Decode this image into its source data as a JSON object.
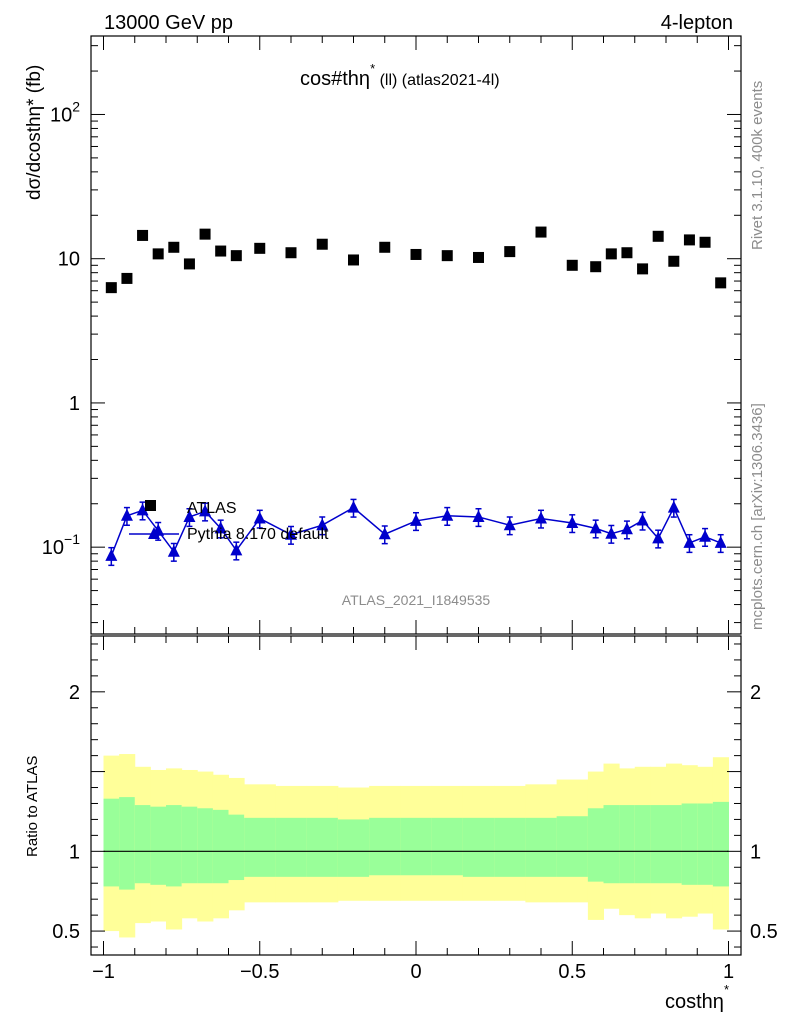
{
  "header": {
    "left": "13000 GeV pp",
    "right": "4-lepton"
  },
  "side_labels": {
    "rivet": "Rivet 3.1.10,  400k events",
    "mcplots": "mcplots.cern.ch [arXiv:1306.3436]"
  },
  "colors": {
    "data": "#000000",
    "mc": "#0000cc",
    "band_inner": "#99ff99",
    "band_outer": "#ffff99"
  },
  "chart_data": [
    {
      "type": "scatter",
      "title": "cos#thη* (ll) (atlas2021-4l)",
      "title_main": "cos#thη",
      "title_sup": "*",
      "title_rest": " (ll) (atlas2021-4l)",
      "ylabel": "dσ/dcosthη* (fb)",
      "yscale": "log",
      "ylim": [
        0.025,
        350
      ],
      "xlim": [
        -1.04,
        1.04
      ],
      "ytick_values": [
        0.1,
        1,
        10,
        100
      ],
      "ytick_labels": [
        {
          "base": "10",
          "exp": "−1"
        },
        {
          "base": "1",
          "exp": ""
        },
        {
          "base": "10",
          "exp": ""
        },
        {
          "base": "10",
          "exp": "2"
        }
      ],
      "watermark": "ATLAS_2021_I1849535",
      "legend": [
        {
          "label": "ATLAS",
          "marker": "square"
        },
        {
          "label": "Pythia 8.170 default",
          "marker": "triangle"
        }
      ],
      "series": [
        {
          "name": "ATLAS",
          "x": [
            -0.975,
            -0.925,
            -0.875,
            -0.825,
            -0.775,
            -0.725,
            -0.675,
            -0.625,
            -0.575,
            -0.5,
            -0.4,
            -0.3,
            -0.2,
            -0.1,
            0.0,
            0.1,
            0.2,
            0.3,
            0.4,
            0.5,
            0.575,
            0.625,
            0.675,
            0.725,
            0.775,
            0.825,
            0.875,
            0.925,
            0.975
          ],
          "y": [
            6.3,
            7.3,
            14.5,
            10.8,
            12.0,
            9.2,
            14.8,
            11.3,
            10.5,
            11.8,
            11.0,
            12.6,
            9.8,
            12.0,
            10.7,
            10.5,
            10.2,
            11.2,
            15.3,
            9.0,
            8.8,
            10.8,
            11.0,
            8.5,
            14.3,
            9.6,
            13.5,
            13.0,
            6.8
          ]
        },
        {
          "name": "Pythia 8.170 default",
          "x": [
            -0.975,
            -0.925,
            -0.875,
            -0.825,
            -0.775,
            -0.725,
            -0.675,
            -0.625,
            -0.575,
            -0.5,
            -0.4,
            -0.3,
            -0.2,
            -0.1,
            0.0,
            0.1,
            0.2,
            0.3,
            0.4,
            0.5,
            0.575,
            0.625,
            0.675,
            0.725,
            0.775,
            0.825,
            0.875,
            0.925,
            0.975
          ],
          "y": [
            0.087,
            0.165,
            0.18,
            0.13,
            0.093,
            0.162,
            0.177,
            0.135,
            0.095,
            0.158,
            0.122,
            0.142,
            0.188,
            0.123,
            0.152,
            0.165,
            0.162,
            0.142,
            0.158,
            0.147,
            0.135,
            0.124,
            0.133,
            0.153,
            0.115,
            0.188,
            0.107,
            0.118,
            0.107
          ],
          "yerr_rel": 0.14
        }
      ]
    },
    {
      "type": "area",
      "ylabel": "Ratio to ATLAS",
      "xlabel": "costhη*",
      "xlabel_main": "costhη",
      "xlabel_sup": "*",
      "xlim": [
        -1.04,
        1.04
      ],
      "ylim": [
        0.35,
        2.35
      ],
      "ytick_values": [
        0.5,
        1,
        2
      ],
      "ytick_labels": [
        "0.5",
        "1",
        "2"
      ],
      "xtick_values": [
        -1,
        -0.5,
        0,
        0.5,
        1
      ],
      "xtick_labels": [
        "−1",
        "−0.5",
        "0",
        "0.5",
        "1"
      ],
      "bin_edges": [
        -1.0,
        -0.95,
        -0.9,
        -0.85,
        -0.8,
        -0.75,
        -0.7,
        -0.65,
        -0.6,
        -0.55,
        -0.45,
        -0.35,
        -0.25,
        -0.15,
        -0.05,
        0.05,
        0.15,
        0.25,
        0.35,
        0.45,
        0.55,
        0.6,
        0.65,
        0.7,
        0.75,
        0.8,
        0.85,
        0.9,
        0.95,
        1.0
      ],
      "outer_low": [
        0.5,
        0.46,
        0.55,
        0.56,
        0.51,
        0.58,
        0.56,
        0.58,
        0.63,
        0.68,
        0.68,
        0.68,
        0.69,
        0.69,
        0.69,
        0.69,
        0.69,
        0.69,
        0.68,
        0.68,
        0.57,
        0.64,
        0.6,
        0.58,
        0.61,
        0.58,
        0.59,
        0.61,
        0.51
      ],
      "outer_high": [
        1.6,
        1.61,
        1.53,
        1.51,
        1.52,
        1.51,
        1.5,
        1.48,
        1.46,
        1.42,
        1.41,
        1.41,
        1.4,
        1.41,
        1.41,
        1.41,
        1.41,
        1.41,
        1.42,
        1.45,
        1.5,
        1.55,
        1.52,
        1.53,
        1.53,
        1.55,
        1.54,
        1.53,
        1.59
      ],
      "inner_low": [
        0.78,
        0.76,
        0.8,
        0.79,
        0.78,
        0.8,
        0.8,
        0.8,
        0.82,
        0.84,
        0.84,
        0.84,
        0.84,
        0.85,
        0.85,
        0.85,
        0.84,
        0.84,
        0.84,
        0.84,
        0.81,
        0.8,
        0.8,
        0.8,
        0.8,
        0.8,
        0.79,
        0.79,
        0.78
      ],
      "inner_high": [
        1.33,
        1.34,
        1.29,
        1.28,
        1.29,
        1.28,
        1.27,
        1.26,
        1.23,
        1.21,
        1.21,
        1.21,
        1.2,
        1.21,
        1.21,
        1.21,
        1.21,
        1.21,
        1.21,
        1.22,
        1.27,
        1.29,
        1.29,
        1.29,
        1.29,
        1.29,
        1.3,
        1.3,
        1.31
      ],
      "reference": 1.0
    }
  ]
}
